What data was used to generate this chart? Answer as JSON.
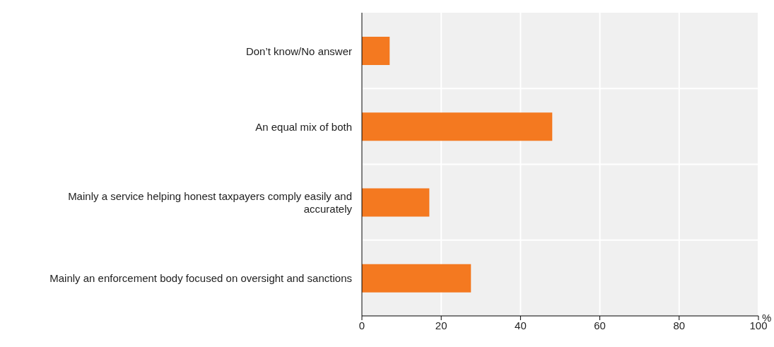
{
  "chart_data": {
    "type": "bar",
    "orientation": "horizontal",
    "xlabel": "%",
    "categories": [
      "Don’t know/No answer",
      "An equal mix of both",
      "Mainly a service helping honest taxpayers comply easily and accurately",
      "Mainly an enforcement body focused on oversight and sanctions"
    ],
    "values": [
      7,
      48,
      17,
      27.5
    ],
    "color": "#f47920",
    "xlim": [
      0,
      100
    ],
    "xticks": [
      0,
      20,
      40,
      60,
      80,
      100
    ],
    "grid": true,
    "legend": false
  }
}
